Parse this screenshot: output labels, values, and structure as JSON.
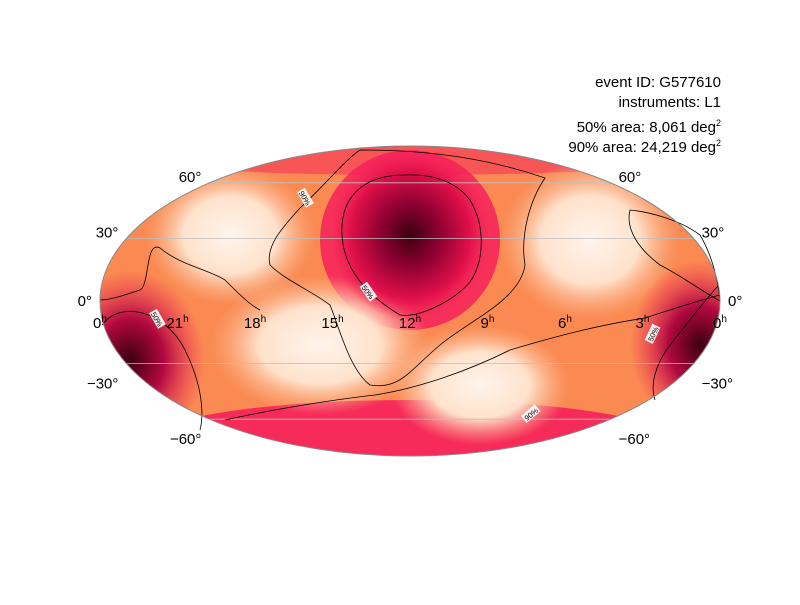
{
  "info": {
    "event_id": "event ID: G577610",
    "instruments": "instruments: L1",
    "area50_prefix": "50% area: 8,061 deg",
    "area90_prefix": "90% area: 24,219 deg",
    "area_exponent": "2"
  },
  "map": {
    "projection": "mollweide",
    "colormap": "cylon (white → orange → crimson → dark maroon)",
    "colors": {
      "low": "#fff4ec",
      "mid": "#fa8c54",
      "high": "#f5205a",
      "peak": "#3c0010",
      "grid": "#bebebe",
      "contour": "#000000"
    },
    "ra_labels": [
      "0",
      "21",
      "18",
      "15",
      "12",
      "9",
      "6",
      "3",
      "0"
    ],
    "ra_unit": "h",
    "dec_labels_left": [
      "60°",
      "30°",
      "0°",
      "−30°",
      "−60°"
    ],
    "dec_labels_right": [
      "60°",
      "30°",
      "0°",
      "−30°",
      "−60°"
    ],
    "contour_labels": [
      "90%",
      "50%",
      "50%",
      "50%",
      "90%"
    ]
  }
}
